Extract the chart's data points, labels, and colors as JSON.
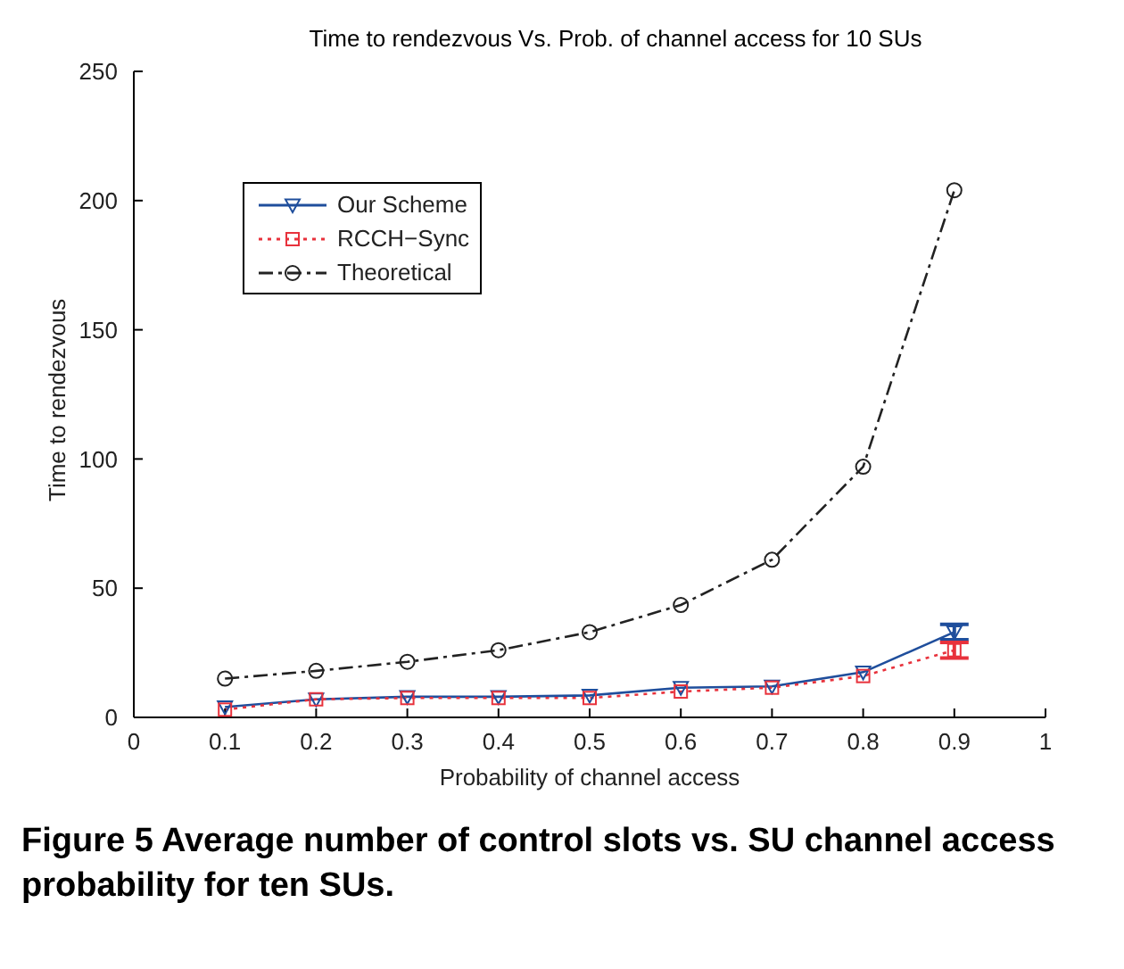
{
  "chart_data": {
    "type": "line",
    "title": "Time to rendezvous Vs. Prob. of channel access for 10 SUs",
    "xlabel": "Probability of channel access",
    "ylabel": "Time to rendezvous",
    "x": [
      0.1,
      0.2,
      0.3,
      0.4,
      0.5,
      0.6,
      0.7,
      0.8,
      0.9
    ],
    "series": [
      {
        "name": "Our Scheme",
        "color": "#1f4e9c",
        "marker": "triangle",
        "line_style": "solid",
        "values": [
          4,
          7,
          8,
          8,
          8.5,
          11.5,
          12,
          17.5,
          33
        ],
        "errors": [
          null,
          null,
          null,
          null,
          null,
          null,
          null,
          null,
          3
        ]
      },
      {
        "name": "RCCH−Sync",
        "color": "#e8323c",
        "marker": "square",
        "line_style": "dotted",
        "values": [
          3,
          7,
          7.5,
          7.5,
          7.5,
          10,
          11.5,
          16,
          26
        ],
        "errors": [
          null,
          null,
          null,
          null,
          null,
          null,
          null,
          null,
          3
        ]
      },
      {
        "name": "Theoretical",
        "color": "#222222",
        "marker": "circle",
        "line_style": "dashed",
        "values": [
          15,
          18,
          21.5,
          26,
          33,
          43.5,
          61,
          97,
          204
        ]
      }
    ],
    "xlim": [
      0,
      1
    ],
    "xticks": [
      0,
      0.1,
      0.2,
      0.3,
      0.4,
      0.5,
      0.6,
      0.7,
      0.8,
      0.9,
      1
    ],
    "ylim": [
      0,
      250
    ],
    "yticks": [
      0,
      50,
      100,
      150,
      200,
      250
    ],
    "legend": "top left",
    "grid": false,
    "annotations": [
      "Figure 5 Average number of control slots vs. SU channel access probability for ten SUs."
    ]
  }
}
